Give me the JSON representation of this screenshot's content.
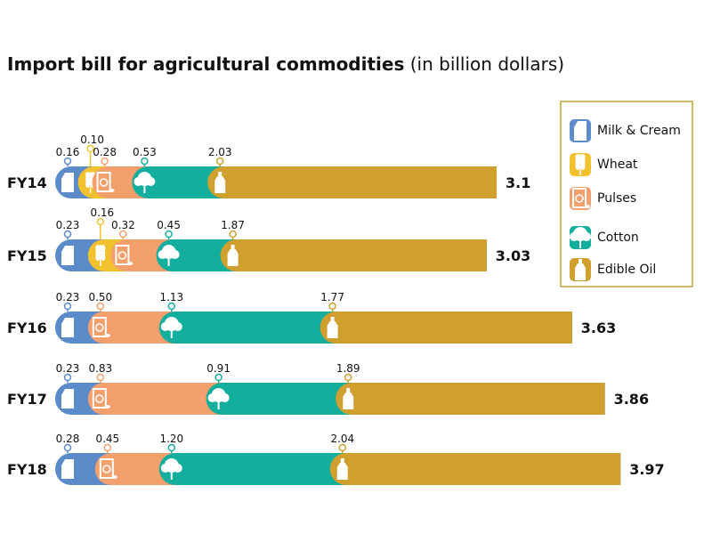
{
  "title": {
    "main": "Import bill for agricultural commodities",
    "sub": "(in billion dollars)"
  },
  "chart_data": {
    "type": "bar",
    "stacked": true,
    "orientation": "horizontal",
    "title": "Import bill for agricultural commodities (in billion dollars)",
    "categories": [
      "FY14",
      "FY15",
      "FY16",
      "FY17",
      "FY18"
    ],
    "series": [
      {
        "name": "Milk & Cream",
        "color": "#5b8bc9",
        "icon": "milk-carton-icon",
        "values": [
          0.16,
          0.23,
          0.23,
          0.23,
          0.28
        ]
      },
      {
        "name": "Wheat",
        "color": "#f2c12e",
        "icon": "wheat-icon",
        "values": [
          0.1,
          0.16,
          null,
          null,
          null
        ]
      },
      {
        "name": "Pulses",
        "color": "#f4a06d",
        "icon": "pulses-bag-icon",
        "values": [
          0.28,
          0.32,
          0.5,
          0.83,
          0.45
        ]
      },
      {
        "name": "Cotton",
        "color": "#14ae9f",
        "icon": "cotton-icon",
        "values": [
          0.53,
          0.45,
          1.13,
          0.91,
          1.2
        ]
      },
      {
        "name": "Edible Oil",
        "color": "#cfa02e",
        "icon": "oil-bottle-icon",
        "values": [
          2.03,
          1.87,
          1.77,
          1.89,
          2.04
        ]
      }
    ],
    "labels": [
      [
        "0.16",
        "0.10",
        "0.28",
        "0.53",
        "2.03"
      ],
      [
        "0.23",
        "0.16",
        "0.32",
        "0.45",
        "1.87"
      ],
      [
        "0.23",
        "",
        "0.50",
        "1.13",
        "1.77"
      ],
      [
        "0.23",
        "",
        "0.83",
        "0.91",
        "1.89"
      ],
      [
        "0.28",
        "",
        "0.45",
        "1.20",
        "2.04"
      ]
    ],
    "totals": [
      "3.1",
      "3.03",
      "3.63",
      "3.86",
      "3.97"
    ],
    "legend_position": "right",
    "grid": false
  }
}
